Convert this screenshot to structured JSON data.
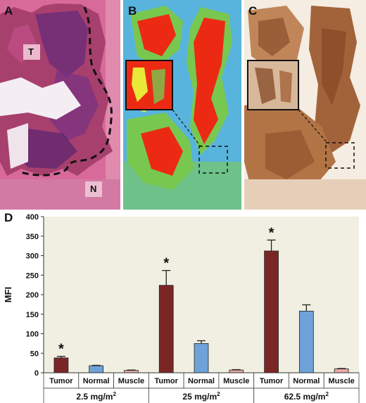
{
  "panels": [
    {
      "letter": "A",
      "markers": [
        "T",
        "N"
      ]
    },
    {
      "letter": "B"
    },
    {
      "letter": "C"
    },
    {
      "letter": "D"
    }
  ],
  "colors": {
    "tumor": "#7b2626",
    "normal": "#6fa2d8",
    "muscle": "#e4a9a7",
    "plot_bg": "#f0efe1",
    "he_pink": "#c44878",
    "he_purple": "#6a2a78",
    "heat_bg": "#58b4dc",
    "heat_green": "#78c850",
    "heat_yellow": "#e8e838",
    "heat_red": "#ec2a14",
    "ihc_brown": "#a2633a"
  },
  "chart_data": {
    "type": "bar",
    "ylabel": "MFI",
    "ylim": [
      0,
      400
    ],
    "yticks": [
      0,
      50,
      100,
      150,
      200,
      250,
      300,
      350,
      400
    ],
    "groups": [
      {
        "label": "2.5 mg/m",
        "sup": "2",
        "bars": [
          {
            "category": "Tumor",
            "value": 38,
            "error": 4,
            "star": "*"
          },
          {
            "category": "Normal",
            "value": 18,
            "error": 1
          },
          {
            "category": "Muscle",
            "value": 6,
            "error": 1
          }
        ]
      },
      {
        "label": "25 mg/m",
        "sup": "2",
        "bars": [
          {
            "category": "Tumor",
            "value": 224,
            "error": 38,
            "star": "*"
          },
          {
            "category": "Normal",
            "value": 75,
            "error": 7
          },
          {
            "category": "Muscle",
            "value": 7,
            "error": 1
          }
        ]
      },
      {
        "label": "62.5 mg/m",
        "sup": "2",
        "bars": [
          {
            "category": "Tumor",
            "value": 312,
            "error": 28,
            "star": "*"
          },
          {
            "category": "Normal",
            "value": 158,
            "error": 16
          },
          {
            "category": "Muscle",
            "value": 10,
            "error": 1
          }
        ]
      }
    ]
  }
}
